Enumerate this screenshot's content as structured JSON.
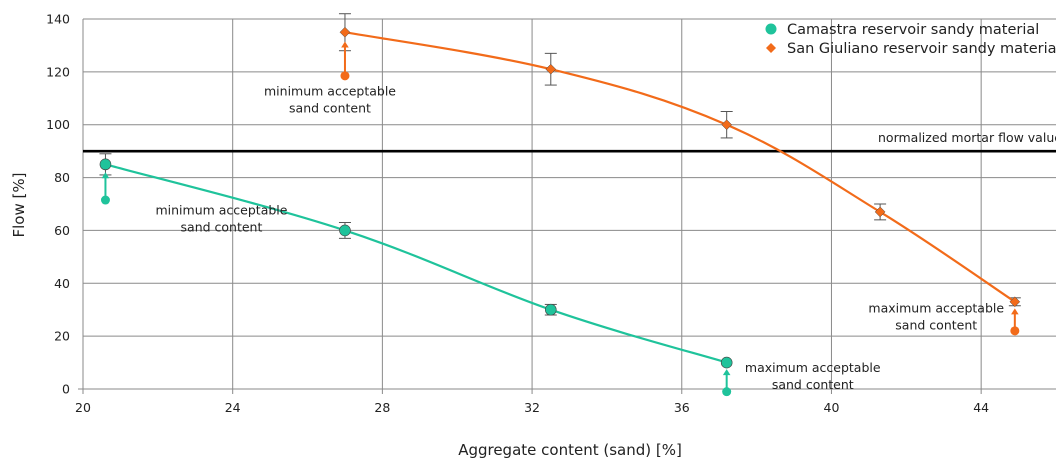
{
  "chart_data": {
    "type": "line",
    "xlabel": "Aggregate content (sand) [%]",
    "ylabel": "Flow [%]",
    "xlim": [
      20,
      46
    ],
    "ylim": [
      0,
      140
    ],
    "x_ticks": [
      20,
      24,
      28,
      32,
      36,
      40,
      44
    ],
    "y_ticks": [
      0,
      20,
      40,
      60,
      80,
      100,
      120,
      140
    ],
    "grid": true,
    "legend_position": "top-right",
    "reference_line": {
      "value": 90,
      "label": "normalized mortar flow value"
    },
    "series": [
      {
        "name": "Camastra reservoir sandy material",
        "color": "#1fc39b",
        "marker": "circle",
        "points": [
          {
            "x": 20.6,
            "y": 85,
            "err": 4
          },
          {
            "x": 27.0,
            "y": 60,
            "err": 3
          },
          {
            "x": 32.5,
            "y": 30,
            "err": 2
          },
          {
            "x": 37.2,
            "y": 10,
            "err": 0
          }
        ]
      },
      {
        "name": "San Giuliano reservoir sandy material",
        "color": "#f26b1a",
        "marker": "diamond",
        "points": [
          {
            "x": 27.0,
            "y": 135,
            "err": 7
          },
          {
            "x": 32.5,
            "y": 121,
            "err": 6
          },
          {
            "x": 37.2,
            "y": 100,
            "err": 5
          },
          {
            "x": 41.3,
            "y": 67,
            "err": 3
          },
          {
            "x": 44.9,
            "y": 33,
            "err": 1.5
          }
        ]
      }
    ],
    "limit_markers": [
      {
        "series": 0,
        "x": 20.6,
        "y_from": 71.5,
        "y_to": 82
      },
      {
        "series": 1,
        "x": 27.0,
        "y_from": 118.5,
        "y_to": 131.5
      },
      {
        "series": 0,
        "x": 37.2,
        "y_from": -1,
        "y_to": 7.5
      },
      {
        "series": 1,
        "x": 44.9,
        "y_from": 22,
        "y_to": 30.5
      }
    ],
    "annotations": [
      {
        "line1": "minimum acceptable",
        "line2": "sand content",
        "x": 23.7,
        "y": 66
      },
      {
        "line1": "minimum acceptable",
        "line2": "sand content",
        "x": 26.6,
        "y": 111
      },
      {
        "line1": "maximum acceptable",
        "line2": "sand content",
        "x": 39.5,
        "y": 6.5
      },
      {
        "line1": "maximum acceptable",
        "line2": "sand content",
        "x": 42.8,
        "y": 29
      }
    ]
  }
}
